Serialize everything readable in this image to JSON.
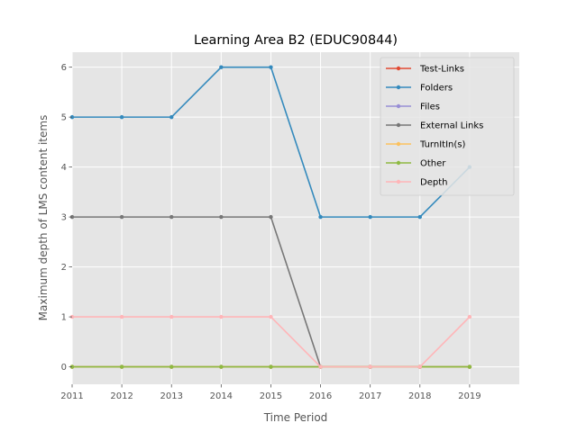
{
  "chart_data": {
    "type": "line",
    "title": "Learning Area B2 (EDUC90844)",
    "xlabel": "Time Period",
    "ylabel": "Maximum depth of LMS content items",
    "x": [
      2011,
      2012,
      2013,
      2014,
      2015,
      2016,
      2017,
      2018,
      2019
    ],
    "xlim": [
      2011,
      2020
    ],
    "ylim": [
      -0.35,
      6.3
    ],
    "xticks": [
      "2011",
      "2012",
      "2013",
      "2014",
      "2015",
      "2016",
      "2017",
      "2018",
      "2019"
    ],
    "yticks": [
      "0",
      "1",
      "2",
      "3",
      "4",
      "5",
      "6"
    ],
    "grid": true,
    "legend_position": "top-right",
    "series": [
      {
        "name": "Test-Links",
        "color": "#E24A33",
        "values": [
          0,
          0,
          0,
          0,
          0,
          0,
          0,
          0,
          0
        ]
      },
      {
        "name": "Folders",
        "color": "#348ABD",
        "values": [
          5,
          5,
          5,
          6,
          6,
          3,
          3,
          3,
          4
        ]
      },
      {
        "name": "Files",
        "color": "#988ED5",
        "values": [
          0,
          0,
          0,
          0,
          0,
          0,
          0,
          0,
          0
        ]
      },
      {
        "name": "External Links",
        "color": "#777777",
        "values": [
          3,
          3,
          3,
          3,
          3,
          0,
          0,
          0,
          0
        ]
      },
      {
        "name": "TurnItIn(s)",
        "color": "#FBC15E",
        "values": [
          0,
          0,
          0,
          0,
          0,
          0,
          0,
          0,
          0
        ]
      },
      {
        "name": "Other",
        "color": "#8EBA42",
        "values": [
          0,
          0,
          0,
          0,
          0,
          0,
          0,
          0,
          0
        ]
      },
      {
        "name": "Depth",
        "color": "#FFB5B8",
        "values": [
          1,
          1,
          1,
          1,
          1,
          0,
          0,
          0,
          1
        ]
      }
    ]
  }
}
